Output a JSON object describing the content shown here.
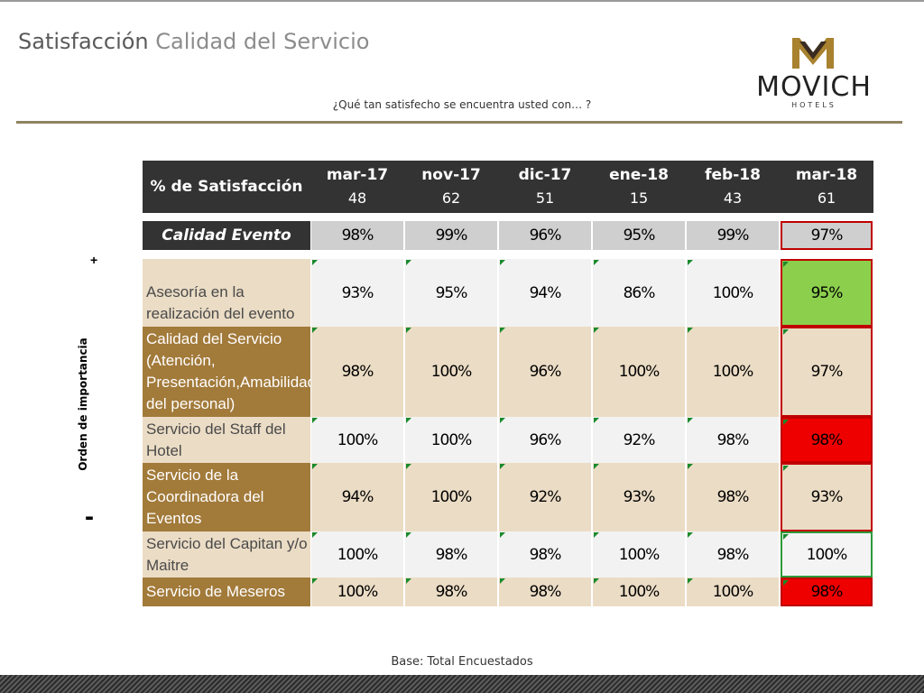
{
  "title": {
    "part1": "Satisfacción",
    "part2": "Calidad del Servicio"
  },
  "subtitle": "¿Qué tan satisfecho se encuentra usted con… ?",
  "logo": {
    "name": "MOVICH",
    "tag": "HOTELS"
  },
  "side": {
    "plus": "+",
    "minus": "-",
    "label": "Orden de importancia"
  },
  "table": {
    "header_label": "% de Satisfacción",
    "columns": [
      {
        "month": "mar-17",
        "n": "48"
      },
      {
        "month": "nov-17",
        "n": "62"
      },
      {
        "month": "dic-17",
        "n": "51"
      },
      {
        "month": "ene-18",
        "n": "15"
      },
      {
        "month": "feb-18",
        "n": "43"
      },
      {
        "month": "mar-18",
        "n": "61"
      }
    ],
    "summary": {
      "label": "Calidad Evento",
      "values": [
        "98%",
        "99%",
        "96%",
        "95%",
        "99%",
        "97%"
      ]
    },
    "rows": [
      {
        "label": "Asesoría en la realización del evento",
        "values": [
          "93%",
          "95%",
          "94%",
          "86%",
          "100%",
          "95%"
        ],
        "highlight": "green"
      },
      {
        "label": "Calidad del Servicio (Atención, Presentación,Amabilidad del personal)",
        "values": [
          "98%",
          "100%",
          "96%",
          "100%",
          "100%",
          "97%"
        ],
        "highlight": "tan"
      },
      {
        "label": "Servicio del Staff del Hotel",
        "values": [
          "100%",
          "100%",
          "96%",
          "92%",
          "98%",
          "98%"
        ],
        "highlight": "red"
      },
      {
        "label": "Servicio de la Coordinadora del Eventos",
        "values": [
          "94%",
          "100%",
          "92%",
          "93%",
          "98%",
          "93%"
        ],
        "highlight": "tan"
      },
      {
        "label": "Servicio del Capitan y/o Maitre",
        "values": [
          "100%",
          "98%",
          "98%",
          "100%",
          "98%",
          "100%"
        ],
        "highlight": "white"
      },
      {
        "label": "Servicio de Meseros",
        "values": [
          "100%",
          "98%",
          "98%",
          "100%",
          "100%",
          "98%"
        ],
        "highlight": "red"
      }
    ]
  },
  "colors": {
    "header_bg": "#333333",
    "label_light": "#ebdcc5",
    "label_dark": "#a27a3a",
    "green": "#8ccf4d",
    "red": "#ef0000",
    "gold_rule": "#8f8461"
  },
  "footer": "Base: Total Encuestados"
}
